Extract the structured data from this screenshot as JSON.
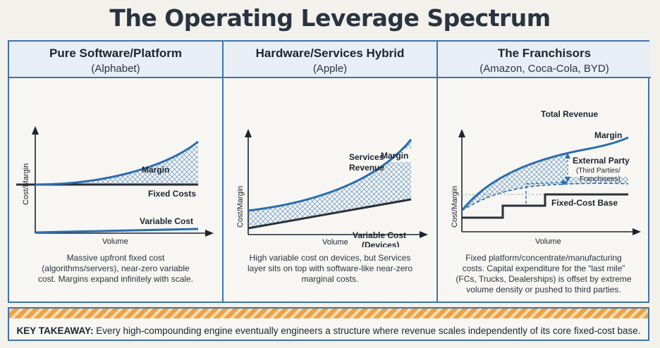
{
  "title": "The Operating Leverage Spectrum",
  "panels": [
    {
      "heading": "Pure Software/Platform",
      "subheading": "(Alphabet)",
      "y_label": "Cost/Margin",
      "x_label": "Volume",
      "labels": {
        "margin": "Margin",
        "fixed": "Fixed Costs",
        "variable": "Variable Cost"
      },
      "description": [
        "Massive upfront fixed cost",
        "(algorithms/servers), near-zero variable",
        "cost. Margins expand infinitely with scale."
      ]
    },
    {
      "heading": "Hardware/Services Hybrid",
      "subheading": "(Apple)",
      "y_label": "Cost/Margin",
      "x_label": "Volume",
      "labels": {
        "services_1": "Services",
        "services_2": "Revenue",
        "margin": "Margin",
        "variable_1": "Variable Cost",
        "variable_2": "(Devices)"
      },
      "description": [
        "High variable cost on devices, but Services",
        "layer sits on top with software-like near-zero",
        "marginal costs."
      ]
    },
    {
      "heading": "The Franchisors",
      "subheading": "(Amazon, Coca-Cola, BYD)",
      "y_label": "Cost/Margin",
      "x_label": "Volume",
      "labels": {
        "revenue": "Total Revenue",
        "margin": "Margin",
        "external": "External Party",
        "external_sub1": "(Third Parties/",
        "external_sub2": "Franchisees)",
        "fixed": "Fixed-Cost Base"
      },
      "description": [
        "Fixed platform/concentrate/manufacturing",
        "costs. Capital expenditure for the “last mile”",
        "(FCs, Trucks, Dealerships) is offset by extreme",
        "volume density or pushed to third parties."
      ]
    }
  ],
  "takeaway": {
    "label": "KEY TAKEAWAY:",
    "text": " Every high-compounding engine eventually engineers a structure where revenue scales independently of its core fixed-cost base."
  },
  "colors": {
    "blue": "#2a6db0",
    "dark": "#2a2f38",
    "hatch": "#4a86c0"
  }
}
